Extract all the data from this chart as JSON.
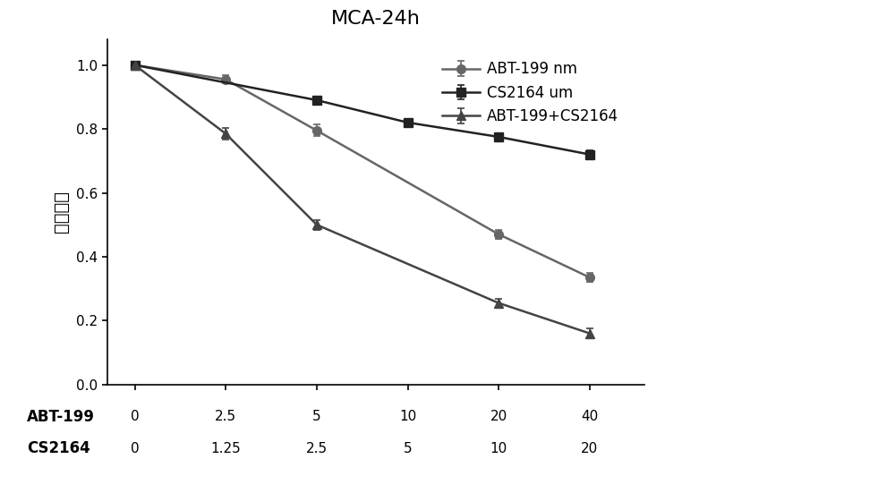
{
  "title": "MCA-24h",
  "ylabel": "细胞活力",
  "x_tick_positions": [
    0,
    1,
    2,
    3,
    4,
    5
  ],
  "abt199_labels": [
    "0",
    "2.5",
    "5",
    "10",
    "20",
    "40"
  ],
  "cs2164_labels": [
    "0",
    "1.25",
    "2.5",
    "5",
    "10",
    "20"
  ],
  "series": [
    {
      "label": "ABT-199 nm",
      "y": [
        1.0,
        0.955,
        0.795,
        0.47,
        0.335
      ],
      "yerr": [
        0.008,
        0.012,
        0.018,
        0.015,
        0.015
      ],
      "x": [
        0,
        1,
        2,
        4,
        5
      ],
      "color": "#666666",
      "marker": "o",
      "ms": 7
    },
    {
      "label": "CS2164 um",
      "y": [
        1.0,
        0.89,
        0.82,
        0.775,
        0.72
      ],
      "yerr": [
        0.008,
        0.012,
        0.01,
        0.01,
        0.012
      ],
      "x": [
        0,
        2,
        3,
        4,
        5
      ],
      "color": "#222222",
      "marker": "s",
      "ms": 7
    },
    {
      "label": "ABT-199+CS2164",
      "y": [
        1.0,
        0.785,
        0.5,
        0.255,
        0.16
      ],
      "yerr": [
        0.01,
        0.018,
        0.015,
        0.012,
        0.015
      ],
      "x": [
        0,
        1,
        2,
        4,
        5
      ],
      "color": "#444444",
      "marker": "^",
      "ms": 7
    }
  ],
  "ylim": [
    0.0,
    1.08
  ],
  "yticks": [
    0.0,
    0.2,
    0.4,
    0.6,
    0.8,
    1.0
  ],
  "title_fontsize": 16,
  "label_fontsize": 14,
  "tick_fontsize": 11,
  "legend_fontsize": 12,
  "fig_width": 10.0,
  "fig_height": 5.51,
  "background_color": "#ffffff",
  "x_label_abt": "ABT-199",
  "x_label_cs": "CS2164",
  "xlim": [
    -0.3,
    5.6
  ]
}
